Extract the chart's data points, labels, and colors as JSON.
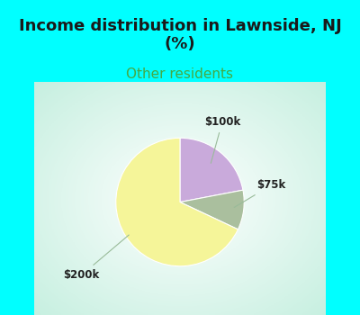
{
  "title": "Income distribution in Lawnside, NJ\n(%)",
  "subtitle": "Other residents",
  "slices": [
    {
      "label": "$100k",
      "value": 22,
      "color": "#C9AADB"
    },
    {
      "label": "$75k",
      "value": 10,
      "color": "#AABF9E"
    },
    {
      "label": "$200k",
      "value": 68,
      "color": "#F5F599"
    }
  ],
  "bg_color_top": "#00FFFF",
  "title_color": "#1a1a1a",
  "subtitle_color": "#44AA44",
  "label_fontsize": 8.5,
  "title_fontsize": 13,
  "subtitle_fontsize": 11,
  "label_color": "#222222",
  "line_color": "#99BB99",
  "chart_bg_colors": [
    "#CEEEE8",
    "#E8F8F4",
    "#FFFFFF",
    "#E8F4EE",
    "#C8EEE8"
  ]
}
